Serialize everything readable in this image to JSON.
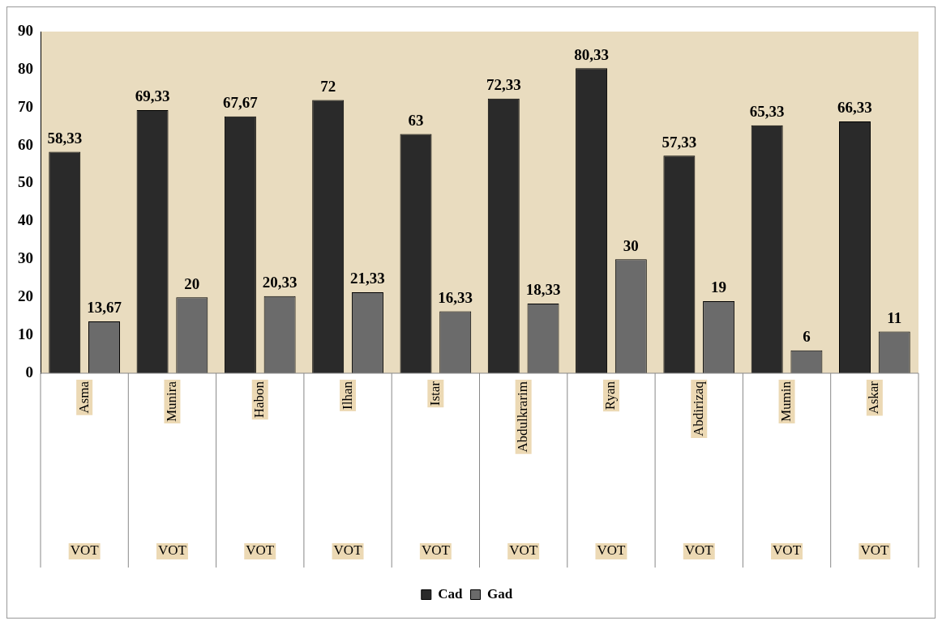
{
  "chart_data": {
    "type": "bar",
    "categories": [
      "Asma",
      "Munira",
      "Habon",
      "Ilhan",
      "Istar",
      "Abdulkrarim",
      "Ryan",
      "Abdirizaq",
      "Mumin",
      "Askar"
    ],
    "series": [
      {
        "name": "Cad",
        "color": "#2a2a2a",
        "values": [
          58.33,
          69.33,
          67.67,
          72,
          63,
          72.33,
          80.33,
          57.33,
          65.33,
          66.33
        ],
        "value_labels": [
          "58,33",
          "69,33",
          "67,67",
          "72",
          "63",
          "72,33",
          "80,33",
          "57,33",
          "65,33",
          "66,33"
        ]
      },
      {
        "name": "Gad",
        "color": "#6b6b6b",
        "values": [
          13.67,
          20,
          20.33,
          21.33,
          16.33,
          18.33,
          30,
          19,
          6,
          11
        ],
        "value_labels": [
          "13,67",
          "20",
          "20,33",
          "21,33",
          "16,33",
          "18,33",
          "30",
          "19",
          "6",
          "11"
        ]
      }
    ],
    "annotations": [
      "VOT",
      "VOT",
      "VOT",
      "VOT",
      "VOT",
      "VOT",
      "VOT",
      "VOT",
      "VOT",
      "VOT"
    ],
    "ylim": [
      0,
      90
    ],
    "yticks": [
      0,
      10,
      20,
      30,
      40,
      50,
      60,
      70,
      80,
      90
    ],
    "grid": false,
    "legend": "bottom"
  }
}
